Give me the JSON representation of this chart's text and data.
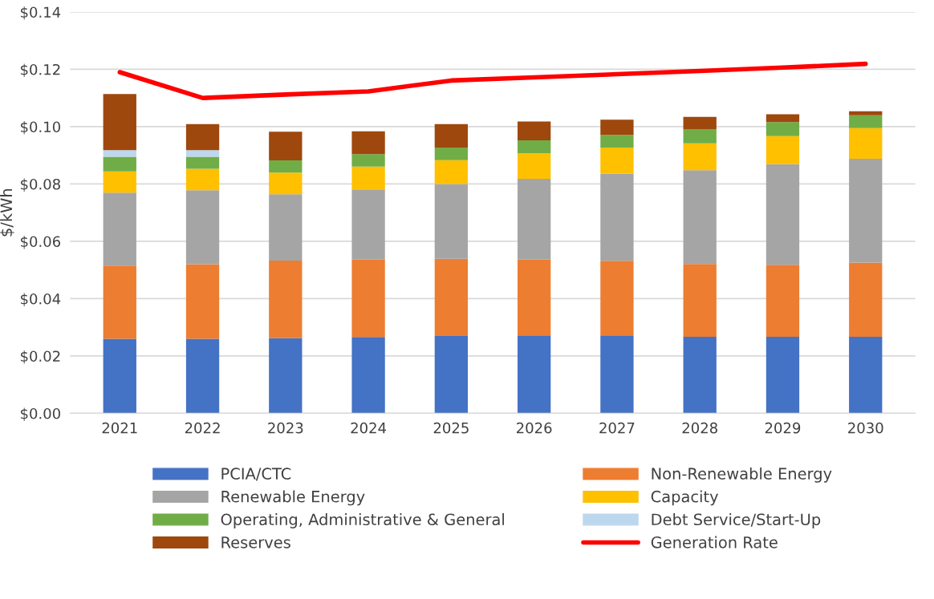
{
  "chart_data": {
    "type": "bar",
    "stacked": true,
    "ylabel": "$/kWh",
    "categories": [
      "2021",
      "2022",
      "2023",
      "2024",
      "2025",
      "2026",
      "2027",
      "2028",
      "2029",
      "2030"
    ],
    "series": [
      {
        "name": "PCIA/CTC",
        "color": "#4472c4",
        "values": [
          0.026,
          0.026,
          0.0262,
          0.0266,
          0.027,
          0.0272,
          0.0272,
          0.0267,
          0.0267,
          0.0267
        ]
      },
      {
        "name": "Non-Renewable Energy",
        "color": "#ed7d31",
        "values": [
          0.0255,
          0.026,
          0.0271,
          0.027,
          0.0269,
          0.0264,
          0.026,
          0.0254,
          0.0251,
          0.0259
        ]
      },
      {
        "name": "Renewable Energy",
        "color": "#a5a5a5",
        "values": [
          0.0255,
          0.0258,
          0.0231,
          0.0245,
          0.0261,
          0.0282,
          0.0304,
          0.0327,
          0.0351,
          0.0362
        ]
      },
      {
        "name": "Capacity",
        "color": "#ffc000",
        "values": [
          0.0074,
          0.0075,
          0.0076,
          0.008,
          0.0083,
          0.0089,
          0.0091,
          0.0094,
          0.0098,
          0.0107
        ]
      },
      {
        "name": "Operating, Administrative & General",
        "color": "#70ad47",
        "values": [
          0.0051,
          0.0042,
          0.0042,
          0.0043,
          0.0044,
          0.0045,
          0.0044,
          0.0048,
          0.0049,
          0.0045
        ]
      },
      {
        "name": "Debt Service/Start-Up",
        "color": "#bdd7ee",
        "values": [
          0.0023,
          0.0023,
          null,
          null,
          null,
          null,
          null,
          null,
          null,
          null
        ]
      },
      {
        "name": "Reserves",
        "color": "#9e480e",
        "values": [
          0.0196,
          0.0091,
          0.01,
          0.008,
          0.0082,
          0.0066,
          0.0053,
          0.0044,
          0.0027,
          0.0014
        ]
      },
      {
        "name": "Generation Rate",
        "type": "line",
        "color": "#ff0000",
        "values": [
          0.119,
          0.11,
          0.1112,
          0.1123,
          0.1161,
          0.1172,
          0.1183,
          0.1194,
          0.1206,
          0.1219
        ]
      }
    ],
    "ylim": [
      0,
      0.14
    ],
    "yticks": [
      {
        "value": 0,
        "label": "$0.00"
      },
      {
        "value": 0.02,
        "label": "$0.02"
      },
      {
        "value": 0.04,
        "label": "$0.04"
      },
      {
        "value": 0.06,
        "label": "$0.06"
      },
      {
        "value": 0.08,
        "label": "$0.08"
      },
      {
        "value": 0.1,
        "label": "$0.10"
      },
      {
        "value": 0.12,
        "label": "$0.12"
      },
      {
        "value": 0.14,
        "label": "$0.14"
      }
    ],
    "grid": "y",
    "legend": "bottom",
    "marker": "none",
    "line_style": "solid"
  }
}
